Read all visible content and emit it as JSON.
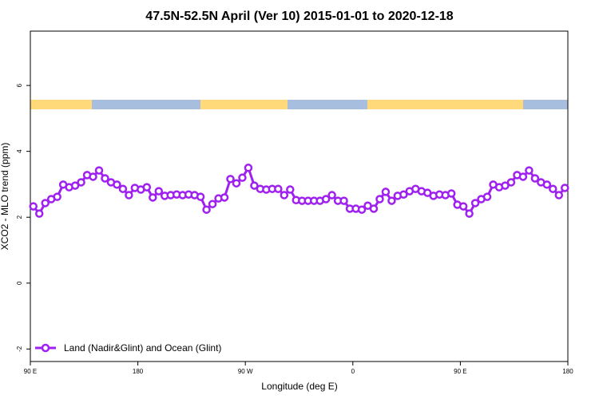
{
  "chart_data": {
    "type": "line",
    "title": "47.5N-52.5N April (Ver 10)   2015-01-01 to 2020-12-18",
    "x_label": "Longitude (deg E)",
    "y_label": "XCO2 - MLO trend (ppm)",
    "x": [
      92.5,
      97.5,
      102.5,
      107.5,
      112.5,
      117.5,
      122.5,
      127.5,
      132.5,
      137.5,
      142.5,
      147.5,
      152.5,
      157.5,
      162.5,
      167.5,
      172.5,
      177.5,
      182.5,
      187.5,
      192.5,
      197.5,
      202.5,
      207.5,
      212.5,
      217.5,
      222.5,
      227.5,
      232.5,
      237.5,
      242.5,
      247.5,
      252.5,
      257.5,
      262.5,
      267.5,
      272.5,
      277.5,
      282.5,
      287.5,
      292.5,
      297.5,
      302.5,
      307.5,
      312.5,
      317.5,
      322.5,
      327.5,
      332.5,
      337.5,
      342.5,
      347.5,
      352.5,
      357.5,
      362.5,
      367.5,
      372.5,
      377.5,
      382.5,
      387.5,
      392.5,
      397.5,
      402.5,
      407.5,
      412.5,
      417.5,
      422.5,
      427.5,
      432.5,
      437.5,
      442.5,
      447.5,
      452.5,
      457.5,
      462.5,
      467.5,
      472.5,
      477.5,
      482.5,
      487.5,
      492.5,
      497.5,
      502.5,
      507.5,
      512.5,
      517.5,
      522.5,
      527.5,
      532.5,
      537.5
    ],
    "series": [
      {
        "name": "Land (Nadir&Glint) and Ocean (Glint)",
        "color": "#a020f0",
        "values": [
          2.33,
          2.11,
          2.43,
          2.55,
          2.62,
          2.99,
          2.91,
          2.96,
          3.06,
          3.28,
          3.23,
          3.42,
          3.18,
          3.06,
          2.99,
          2.86,
          2.67,
          2.89,
          2.84,
          2.91,
          2.6,
          2.79,
          2.65,
          2.67,
          2.69,
          2.67,
          2.69,
          2.67,
          2.62,
          2.23,
          2.4,
          2.57,
          2.6,
          3.16,
          3.03,
          3.2,
          3.5,
          2.96,
          2.86,
          2.84,
          2.86,
          2.86,
          2.67,
          2.84,
          2.52,
          2.5,
          2.5,
          2.5,
          2.5,
          2.55,
          2.67,
          2.5,
          2.5,
          2.26,
          2.26,
          2.23,
          2.35,
          2.26,
          2.55,
          2.77,
          2.5,
          2.65,
          2.69,
          2.79,
          2.86,
          2.79,
          2.74,
          2.65,
          2.69,
          2.67,
          2.72,
          2.38,
          2.33,
          2.11,
          2.43,
          2.55,
          2.62,
          2.99,
          2.91,
          2.96,
          3.06,
          3.28,
          3.23,
          3.42,
          3.18,
          3.06,
          2.99,
          2.86,
          2.67,
          2.89
        ]
      }
    ],
    "xlim": [
      90,
      540
    ],
    "xticks": [
      {
        "value": 90,
        "label": "90 E"
      },
      {
        "value": 180,
        "label": "180"
      },
      {
        "value": 270,
        "label": "90 W"
      },
      {
        "value": 360,
        "label": "0"
      },
      {
        "value": 450,
        "label": "90 E"
      },
      {
        "value": 540,
        "label": "180"
      }
    ],
    "ylim": [
      -2.38,
      7.65
    ],
    "yticks": [
      -2,
      0,
      2,
      4,
      6
    ],
    "legend": "bottomleft"
  }
}
